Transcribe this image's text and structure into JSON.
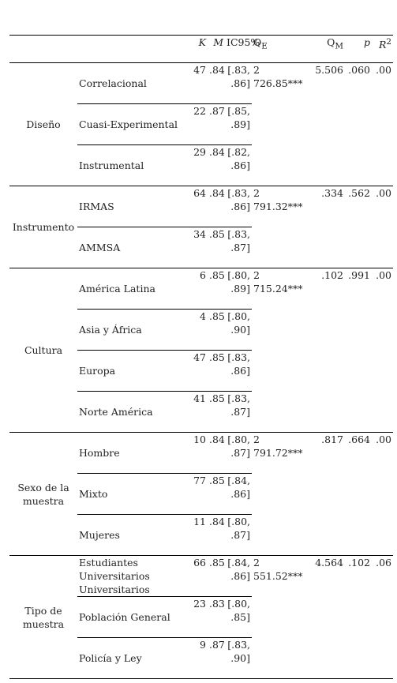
{
  "header": [
    "K",
    "M",
    "IC95%",
    {
      "base": "Q",
      "sub": "E"
    },
    {
      "base": "Q",
      "sub": "M"
    },
    "p",
    {
      "base": "R",
      "sup": "2"
    }
  ],
  "groups": [
    {
      "name": "Diseño",
      "QE": "2 726.85***",
      "QM": "5.506",
      "p": ".060",
      "R2": ".00",
      "rows": [
        {
          "label": "Correlacional",
          "K": "47",
          "M": ".84",
          "CI": "[.83, .86]"
        },
        {
          "label": "Cuasi-Experimental",
          "K": "22",
          "M": ".87",
          "CI": "[.85, .89]"
        },
        {
          "label": "Instrumental",
          "K": "29",
          "M": ".84",
          "CI": "[.82, .86]"
        }
      ]
    },
    {
      "name": "Instrumento",
      "QE": "2 791.32***",
      "QM": ".334",
      "p": ".562",
      "R2": ".00",
      "rows": [
        {
          "label": "IRMAS",
          "K": "64",
          "M": ".84",
          "CI": "[.83, .86]"
        },
        {
          "label": "AMMSA",
          "K": "34",
          "M": ".85",
          "CI": "[.83, .87]"
        }
      ]
    },
    {
      "name": "Cultura",
      "QE": "2 715.24***",
      "QM": ".102",
      "p": ".991",
      "R2": ".00",
      "rows": [
        {
          "label": "América Latina",
          "K": "6",
          "M": ".85",
          "CI": "[.80, .89]"
        },
        {
          "label": "Asia y África",
          "K": "4",
          "M": ".85",
          "CI": "[.80, .90]"
        },
        {
          "label": "Europa",
          "K": "47",
          "M": ".85",
          "CI": "[.83, .86]"
        },
        {
          "label": "Norte América",
          "K": "41",
          "M": ".85",
          "CI": "[.83, .87]"
        }
      ]
    },
    {
      "name": "Sexo de la muestra",
      "QE": "2 791.72***",
      "QM": ".817",
      "p": ".664",
      "R2": ".00",
      "rows": [
        {
          "label": "Hombre",
          "K": "10",
          "M": ".84",
          "CI": "[.80, .87]"
        },
        {
          "label": "Mixto",
          "K": "77",
          "M": ".85",
          "CI": "[.84, .86]"
        },
        {
          "label": "Mujeres",
          "K": "11",
          "M": ".84",
          "CI": "[.80, .87]"
        }
      ]
    },
    {
      "name": "Tipo de muestra",
      "QE": "2 551.52***",
      "QM": "4.564",
      "p": ".102",
      "R2": ".06",
      "rows": [
        {
          "label": "Estudiantes Universitarios Universitarios",
          "K": "66",
          "M": ".85",
          "CI": "[.84, .86]"
        },
        {
          "label": "Población General",
          "K": "23",
          "M": ".83",
          "CI": "[.80, .85]"
        },
        {
          "label": "Policía y Ley",
          "K": "9",
          "M": ".87",
          "CI": "[.83, .90]"
        }
      ]
    }
  ]
}
